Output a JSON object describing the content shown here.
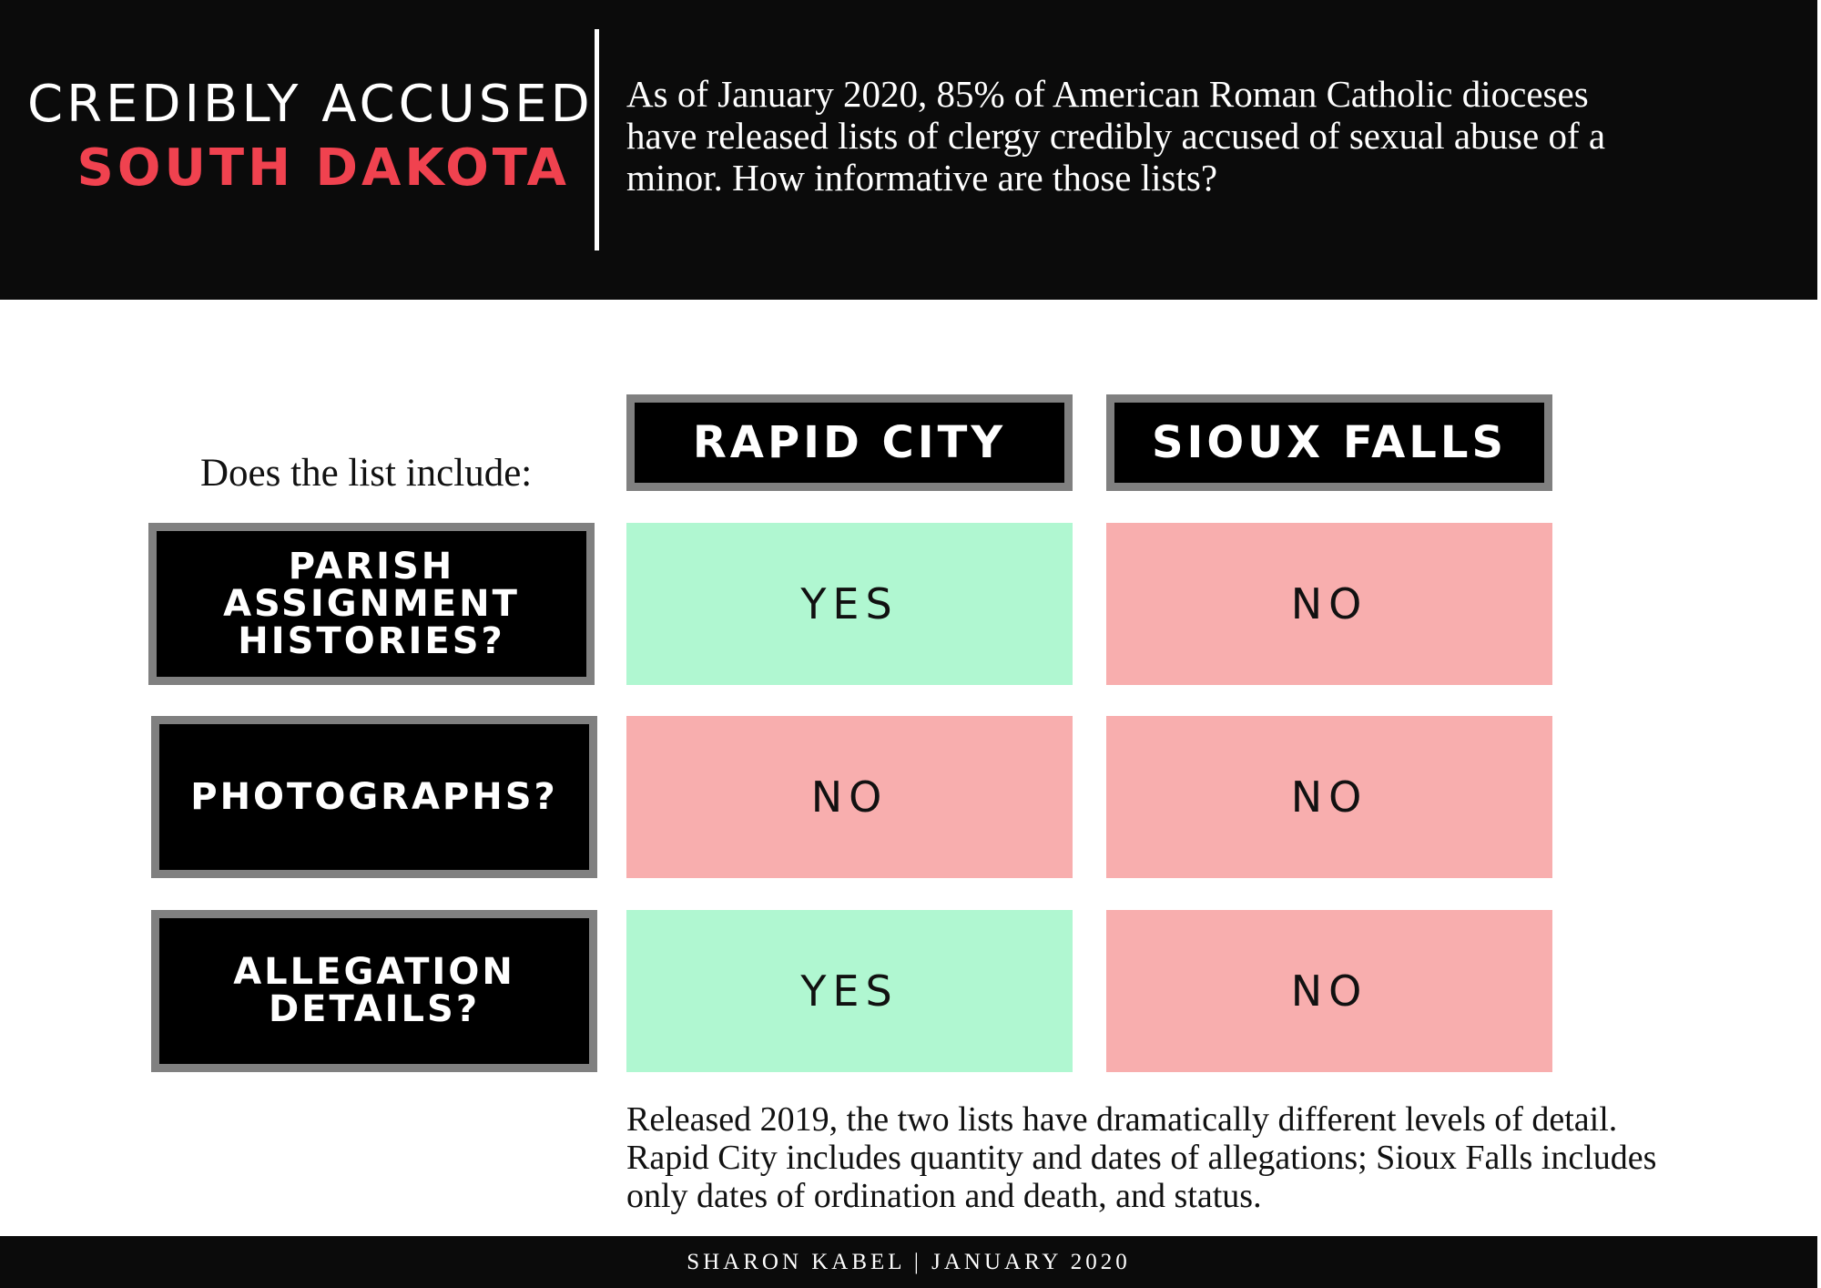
{
  "header": {
    "title_line1": "CREDIBLY ACCUSED",
    "title_line2": "SOUTH DAKOTA",
    "intro": "As of January 2020, 85% of American Roman Catholic dioceses have released lists of clergy credibly accused of sexual abuse of a minor. How informative are those lists?",
    "accent_color": "#f0424f"
  },
  "table": {
    "prompt": "Does the list include:",
    "columns": [
      "RAPID CITY",
      "SIOUX FALLS"
    ],
    "rows": [
      {
        "label": "PARISH ASSIGNMENT HISTORIES?",
        "values": [
          "YES",
          "NO"
        ]
      },
      {
        "label": "PHOTOGRAPHS?",
        "values": [
          "NO",
          "NO"
        ]
      },
      {
        "label": "ALLEGATION DETAILS?",
        "values": [
          "YES",
          "NO"
        ]
      }
    ],
    "colors": {
      "yes": "#b0f7d1",
      "no": "#f8aeae"
    }
  },
  "note": "Released 2019, the two lists have dramatically different levels of detail. Rapid City includes quantity and dates of allegations; Sioux Falls includes only dates of ordination and death, and status.",
  "footer": {
    "credit": "SHARON KABEL | JANUARY 2020"
  }
}
